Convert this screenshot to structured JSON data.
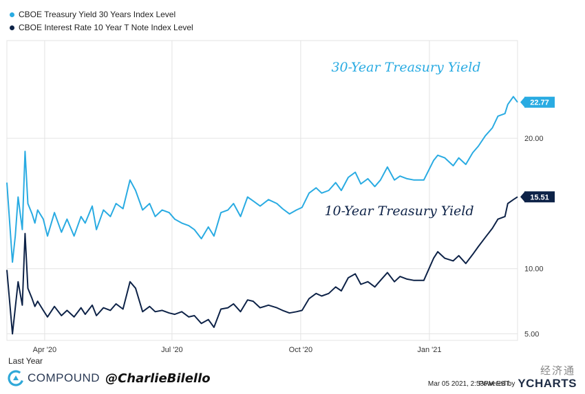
{
  "legend": {
    "series1": "CBOE Treasury Yield 30 Years Index Level",
    "series2": "CBOE Interest Rate 10 Year T Note Index Level"
  },
  "footer": {
    "period": "Last Year",
    "brand": "COMPOUND",
    "handle": "@CharlieBilello",
    "timestamp": "Mar 05 2021, 2:53PM EST.",
    "powered_by": "Powered by",
    "provider": "YCHARTS",
    "watermark": "经济通"
  },
  "colors": {
    "series1": "#29abe2",
    "series2": "#0d2247",
    "grid": "#e3e3e3"
  },
  "chart_data": {
    "type": "line",
    "yticks": [
      5.0,
      10.0,
      20.0
    ],
    "ytick_labels": [
      "5.00",
      "10.00",
      "20.00"
    ],
    "ylim": [
      4.5,
      27.5
    ],
    "xlim": [
      "2020-03-05",
      "2021-03-05"
    ],
    "xticks": [
      "2020-04-01",
      "2020-07-01",
      "2020-10-01",
      "2021-01-01"
    ],
    "xtick_labels": [
      "Apr '20",
      "Jul '20",
      "Oct '20",
      "Jan '21"
    ],
    "annotations": [
      {
        "text": "30-Year Treasury Yield",
        "series": 0
      },
      {
        "text": "10-Year Treasury Yield",
        "series": 1
      }
    ],
    "last_value_labels": [
      "22.77",
      "15.51"
    ],
    "series": [
      {
        "name": "CBOE Treasury Yield 30 Years Index Level",
        "x": [
          "2020-03-05",
          "2020-03-09",
          "2020-03-11",
          "2020-03-13",
          "2020-03-16",
          "2020-03-18",
          "2020-03-20",
          "2020-03-23",
          "2020-03-25",
          "2020-03-27",
          "2020-03-31",
          "2020-04-03",
          "2020-04-08",
          "2020-04-13",
          "2020-04-17",
          "2020-04-22",
          "2020-04-27",
          "2020-04-30",
          "2020-05-05",
          "2020-05-08",
          "2020-05-13",
          "2020-05-18",
          "2020-05-22",
          "2020-05-27",
          "2020-06-01",
          "2020-06-05",
          "2020-06-10",
          "2020-06-15",
          "2020-06-19",
          "2020-06-24",
          "2020-06-29",
          "2020-07-03",
          "2020-07-08",
          "2020-07-13",
          "2020-07-17",
          "2020-07-22",
          "2020-07-27",
          "2020-07-31",
          "2020-08-05",
          "2020-08-10",
          "2020-08-14",
          "2020-08-19",
          "2020-08-24",
          "2020-08-28",
          "2020-09-02",
          "2020-09-08",
          "2020-09-14",
          "2020-09-18",
          "2020-09-23",
          "2020-09-28",
          "2020-10-02",
          "2020-10-07",
          "2020-10-12",
          "2020-10-16",
          "2020-10-21",
          "2020-10-26",
          "2020-10-30",
          "2020-11-04",
          "2020-11-09",
          "2020-11-13",
          "2020-11-18",
          "2020-11-23",
          "2020-11-27",
          "2020-12-02",
          "2020-12-07",
          "2020-12-11",
          "2020-12-16",
          "2020-12-21",
          "2020-12-28",
          "2021-01-04",
          "2021-01-07",
          "2021-01-12",
          "2021-01-18",
          "2021-01-22",
          "2021-01-27",
          "2021-02-01",
          "2021-02-05",
          "2021-02-10",
          "2021-02-15",
          "2021-02-19",
          "2021-02-24",
          "2021-02-26",
          "2021-03-02",
          "2021-03-05"
        ],
        "values": [
          16.6,
          10.5,
          12.5,
          15.5,
          13.0,
          19.0,
          15.0,
          14.2,
          13.5,
          14.5,
          13.8,
          12.5,
          14.3,
          12.8,
          13.8,
          12.5,
          14.0,
          13.5,
          14.8,
          13.0,
          14.5,
          14.0,
          15.0,
          14.6,
          16.8,
          16.0,
          14.5,
          15.0,
          14.0,
          14.5,
          14.3,
          13.8,
          13.5,
          13.3,
          13.0,
          12.3,
          13.2,
          12.5,
          14.3,
          14.5,
          15.0,
          14.0,
          15.5,
          15.2,
          14.8,
          15.3,
          15.0,
          14.6,
          14.2,
          14.5,
          14.7,
          15.8,
          16.2,
          15.8,
          16.0,
          16.6,
          16.0,
          17.0,
          17.4,
          16.5,
          16.9,
          16.3,
          16.8,
          17.8,
          16.8,
          17.1,
          16.9,
          16.8,
          16.8,
          18.3,
          18.7,
          18.5,
          17.9,
          18.5,
          18.0,
          18.9,
          19.4,
          20.2,
          20.8,
          21.7,
          21.9,
          22.6,
          23.2,
          22.77
        ]
      },
      {
        "name": "CBOE Interest Rate 10 Year T Note Index Level",
        "x": [
          "2020-03-05",
          "2020-03-09",
          "2020-03-11",
          "2020-03-13",
          "2020-03-16",
          "2020-03-18",
          "2020-03-20",
          "2020-03-23",
          "2020-03-25",
          "2020-03-27",
          "2020-03-31",
          "2020-04-03",
          "2020-04-08",
          "2020-04-13",
          "2020-04-17",
          "2020-04-22",
          "2020-04-27",
          "2020-04-30",
          "2020-05-05",
          "2020-05-08",
          "2020-05-13",
          "2020-05-18",
          "2020-05-22",
          "2020-05-27",
          "2020-06-01",
          "2020-06-05",
          "2020-06-10",
          "2020-06-15",
          "2020-06-19",
          "2020-06-24",
          "2020-06-29",
          "2020-07-03",
          "2020-07-08",
          "2020-07-13",
          "2020-07-17",
          "2020-07-22",
          "2020-07-27",
          "2020-07-31",
          "2020-08-05",
          "2020-08-10",
          "2020-08-14",
          "2020-08-19",
          "2020-08-24",
          "2020-08-28",
          "2020-09-02",
          "2020-09-08",
          "2020-09-14",
          "2020-09-18",
          "2020-09-23",
          "2020-09-28",
          "2020-10-02",
          "2020-10-07",
          "2020-10-12",
          "2020-10-16",
          "2020-10-21",
          "2020-10-26",
          "2020-10-30",
          "2020-11-04",
          "2020-11-09",
          "2020-11-13",
          "2020-11-18",
          "2020-11-23",
          "2020-11-27",
          "2020-12-02",
          "2020-12-07",
          "2020-12-11",
          "2020-12-16",
          "2020-12-21",
          "2020-12-28",
          "2021-01-04",
          "2021-01-07",
          "2021-01-12",
          "2021-01-18",
          "2021-01-22",
          "2021-01-27",
          "2021-02-01",
          "2021-02-05",
          "2021-02-10",
          "2021-02-15",
          "2021-02-19",
          "2021-02-24",
          "2021-02-26",
          "2021-03-02",
          "2021-03-05"
        ],
        "values": [
          9.9,
          5.0,
          7.0,
          9.0,
          7.2,
          12.7,
          8.5,
          7.7,
          7.1,
          7.5,
          6.8,
          6.3,
          7.1,
          6.4,
          6.8,
          6.3,
          7.0,
          6.5,
          7.2,
          6.4,
          7.0,
          6.8,
          7.3,
          6.9,
          9.0,
          8.5,
          6.7,
          7.1,
          6.7,
          6.8,
          6.6,
          6.5,
          6.7,
          6.3,
          6.4,
          5.8,
          6.1,
          5.5,
          6.9,
          7.0,
          7.3,
          6.7,
          7.6,
          7.5,
          7.0,
          7.2,
          7.0,
          6.8,
          6.6,
          6.7,
          6.8,
          7.7,
          8.1,
          7.9,
          8.1,
          8.6,
          8.3,
          9.3,
          9.6,
          8.8,
          9.0,
          8.6,
          9.1,
          9.7,
          9.0,
          9.4,
          9.2,
          9.1,
          9.1,
          10.8,
          11.3,
          10.8,
          10.6,
          11.0,
          10.4,
          11.1,
          11.7,
          12.4,
          13.1,
          13.8,
          14.0,
          15.0,
          15.3,
          15.51
        ]
      }
    ]
  }
}
